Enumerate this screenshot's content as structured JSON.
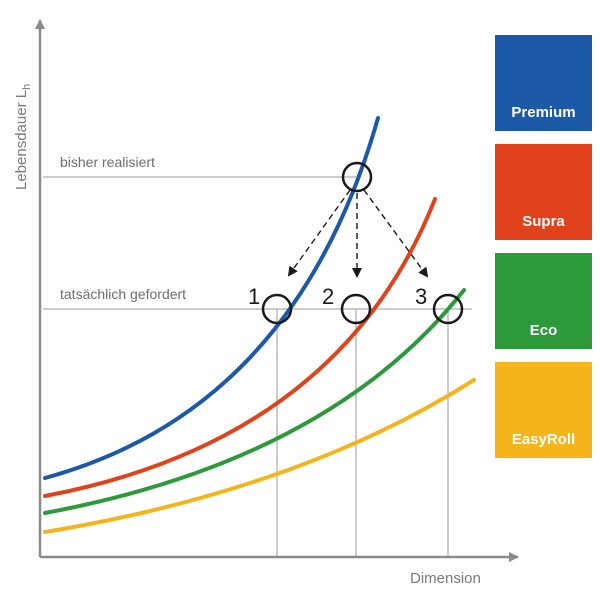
{
  "chart_data": {
    "type": "line",
    "xlabel": "Dimension",
    "ylabel": "Lebensdauer L",
    "ylabel_sub": "h",
    "reference_lines": [
      {
        "label": "bisher realisiert"
      },
      {
        "label": "tatsächlich gefordert"
      }
    ],
    "points": [
      {
        "label": "1",
        "series": "Premium"
      },
      {
        "label": "2",
        "series": "Supra"
      },
      {
        "label": "3",
        "series": "Eco"
      }
    ],
    "series": [
      {
        "name": "Premium",
        "color": "#1c5aa8"
      },
      {
        "name": "Supra",
        "color": "#e0431b"
      },
      {
        "name": "Eco",
        "color": "#2c9a3a"
      },
      {
        "name": "EasyRoll",
        "color": "#f4b41a"
      }
    ],
    "legend_position": "right",
    "grid": false
  }
}
